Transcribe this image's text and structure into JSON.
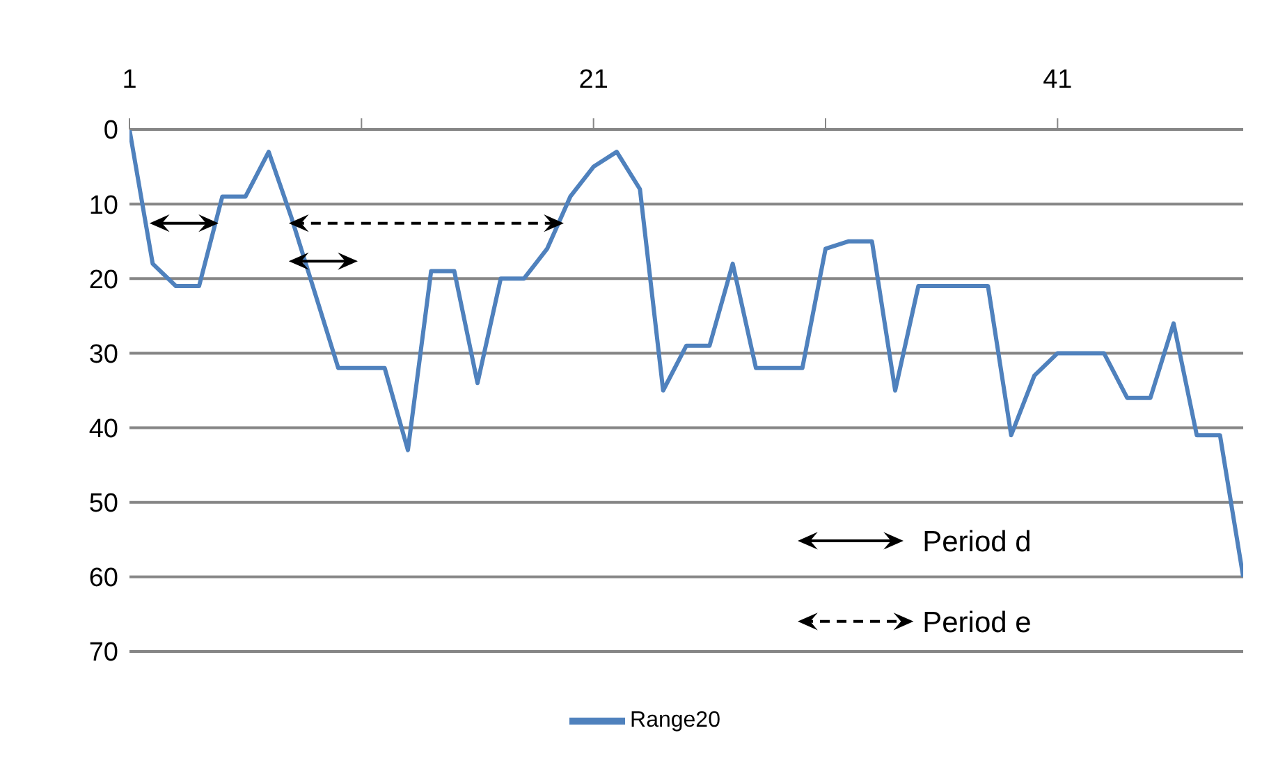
{
  "chart_data": {
    "type": "line",
    "x": [
      1,
      2,
      3,
      4,
      5,
      6,
      7,
      8,
      9,
      10,
      11,
      12,
      13,
      14,
      15,
      16,
      17,
      18,
      19,
      20,
      21,
      22,
      23,
      24,
      25,
      26,
      27,
      28,
      29,
      30,
      31,
      32,
      33,
      34,
      35,
      36,
      37,
      38,
      39,
      40,
      41,
      42,
      43,
      44,
      45,
      46,
      47,
      48,
      49
    ],
    "series": [
      {
        "name": "Range20",
        "color": "#4f81bd",
        "values": [
          0,
          18,
          21,
          21,
          9,
          9,
          3,
          12,
          22,
          32,
          32,
          32,
          43,
          19,
          19,
          34,
          20,
          20,
          16,
          9,
          5,
          3,
          8,
          35,
          29,
          29,
          18,
          32,
          32,
          32,
          16,
          15,
          15,
          35,
          21,
          21,
          21,
          21,
          41,
          33,
          30,
          30,
          30,
          36,
          36,
          26,
          41,
          41,
          60
        ]
      }
    ],
    "xlim": [
      1,
      49
    ],
    "xticks": [
      1,
      {
        "value": 11,
        "label": null
      },
      21,
      {
        "value": 31,
        "label": null
      },
      41
    ],
    "ylim": [
      70,
      0
    ],
    "yticks": [
      0,
      10,
      20,
      30,
      40,
      50,
      60,
      70
    ],
    "grid": "y",
    "legend": "bottom",
    "marker": "none",
    "line_style": "solid",
    "annotations": [
      "Period d",
      "Period e"
    ]
  }
}
